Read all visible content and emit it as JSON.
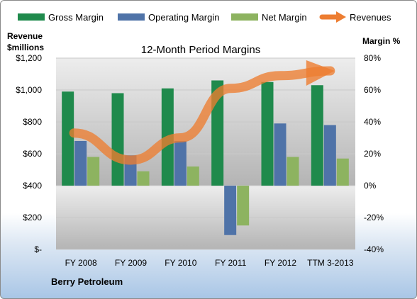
{
  "chart_data": {
    "type": "bar",
    "title": "12-Month Period Margins",
    "company": "Berry Petroleum",
    "y_left_label_lines": [
      "Revenue",
      "$millions"
    ],
    "y_right_label": "Margin %",
    "categories": [
      "FY 2008",
      "FY 2009",
      "FY 2010",
      "FY 2011",
      "FY 2012",
      "TTM 3-2013"
    ],
    "ylim_left": [
      0,
      1200
    ],
    "ylim_right": [
      -40,
      80
    ],
    "left_ticks": [
      "$-",
      "$200",
      "$400",
      "$600",
      "$800",
      "$1,000",
      "$1,200"
    ],
    "right_ticks": [
      "-40%",
      "-20%",
      "0%",
      "20%",
      "40%",
      "60%",
      "80%"
    ],
    "grid": true,
    "legend_position": "top",
    "series": [
      {
        "name": "Gross Margin",
        "axis": "right",
        "kind": "bar",
        "color": "#1f8a4c",
        "values": [
          59,
          58,
          61,
          66,
          65,
          63
        ]
      },
      {
        "name": "Operating Margin",
        "axis": "right",
        "kind": "bar",
        "color": "#4f73a8",
        "values": [
          28,
          19,
          28,
          -31,
          39,
          38
        ]
      },
      {
        "name": "Net Margin",
        "axis": "right",
        "kind": "bar",
        "color": "#8db360",
        "values": [
          18,
          9,
          12,
          -25,
          18,
          17
        ]
      },
      {
        "name": "Revenues",
        "axis": "left",
        "kind": "line",
        "color": "#ed7d31",
        "values": [
          730,
          560,
          700,
          1010,
          1090,
          1120
        ]
      }
    ]
  }
}
